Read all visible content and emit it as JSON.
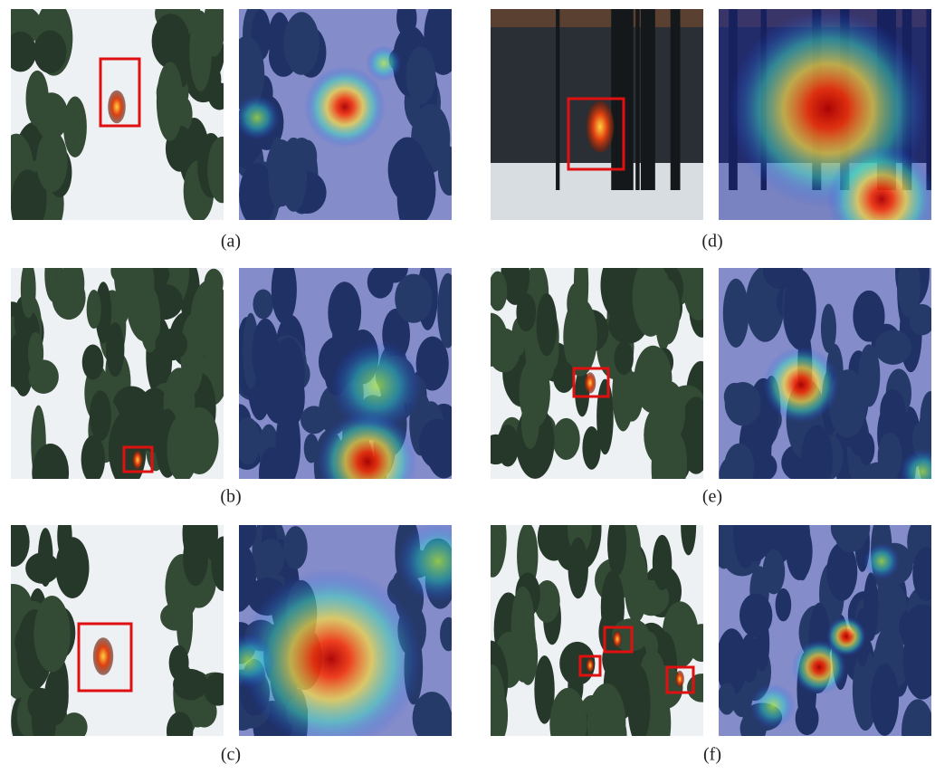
{
  "panels": [
    {
      "caption": "(a)"
    },
    {
      "caption": "(d)"
    },
    {
      "caption": "(b)"
    },
    {
      "caption": "(e)"
    },
    {
      "caption": "(c)"
    },
    {
      "caption": "(f)"
    }
  ]
}
